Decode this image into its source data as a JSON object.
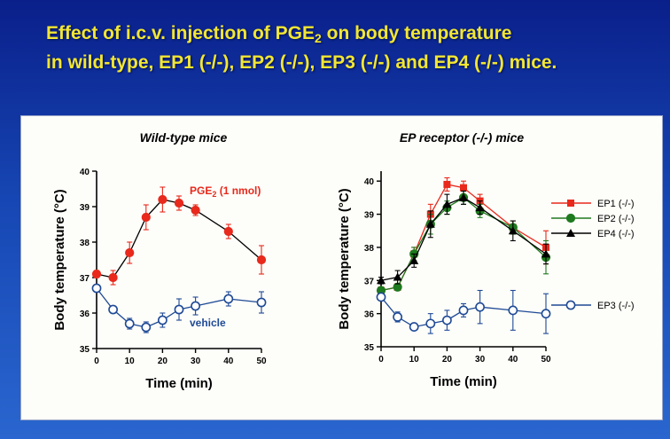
{
  "title": {
    "line1_pre": "Effect of i.c.v. injection of PGE",
    "line1_sub": "2",
    "line1_post": " on body temperature",
    "line2": "in wild-type, EP1 (-/-), EP2 (-/-), EP3 (-/-) and EP4 (-/-) mice."
  },
  "colors": {
    "background": "#1a49b5",
    "title_text": "#f2e633",
    "panel": "#fdfdf9",
    "pge2": "#e8291c",
    "vehicle": "#1f4a96",
    "ep1": "#e8291c",
    "ep2": "#1e7a1e",
    "ep4": "#000000",
    "ep3": "#1f4a96"
  },
  "chart_data": [
    {
      "type": "line",
      "title": "Wild-type mice",
      "xlabel": "Time (min)",
      "ylabel": "Body temperature (°C)",
      "xlim": [
        0,
        50
      ],
      "ylim": [
        35,
        40
      ],
      "xticks": [
        "0",
        "10",
        "20",
        "30",
        "40",
        "50"
      ],
      "yticks": [
        "35",
        "36",
        "37",
        "38",
        "39",
        "40"
      ],
      "series": [
        {
          "name": "PGE2 (1 nmol)",
          "label_main": "PGE",
          "label_sub": "2",
          "label_post": " (1 nmol)",
          "color": "pge2",
          "marker": "filled-circle",
          "x": [
            0,
            5,
            10,
            15,
            20,
            25,
            30,
            40,
            50
          ],
          "y": [
            37.1,
            37.0,
            37.7,
            38.7,
            39.2,
            39.1,
            38.9,
            38.3,
            37.5
          ],
          "err": [
            0.1,
            0.2,
            0.3,
            0.35,
            0.35,
            0.2,
            0.15,
            0.2,
            0.4
          ]
        },
        {
          "name": "vehicle",
          "color": "vehicle",
          "marker": "open-circle",
          "x": [
            0,
            5,
            10,
            15,
            20,
            25,
            30,
            40,
            50
          ],
          "y": [
            36.7,
            36.1,
            35.7,
            35.6,
            35.8,
            36.1,
            36.2,
            36.4,
            36.3
          ],
          "err": [
            0.1,
            0.1,
            0.15,
            0.15,
            0.2,
            0.3,
            0.25,
            0.2,
            0.3
          ]
        }
      ]
    },
    {
      "type": "line",
      "title": "EP receptor (-/-) mice",
      "xlabel": "Time (min)",
      "ylabel": "Body temperature (°C)",
      "xlim": [
        0,
        50
      ],
      "ylim": [
        35,
        40.3
      ],
      "xticks": [
        "0",
        "10",
        "20",
        "30",
        "40",
        "50"
      ],
      "yticks": [
        "35",
        "36",
        "37",
        "38",
        "39",
        "40"
      ],
      "legend_position": "right",
      "series": [
        {
          "name": "EP1 (-/-)",
          "color": "ep1",
          "marker": "filled-square",
          "x": [
            0,
            5,
            10,
            15,
            20,
            25,
            30,
            40,
            50
          ],
          "y": [
            36.7,
            36.8,
            37.8,
            39.0,
            39.9,
            39.8,
            39.4,
            38.6,
            38.0
          ],
          "err": [
            0.1,
            0.1,
            0.2,
            0.3,
            0.2,
            0.2,
            0.2,
            0.2,
            0.5
          ]
        },
        {
          "name": "EP2 (-/-)",
          "color": "ep2",
          "marker": "filled-circle",
          "x": [
            0,
            5,
            10,
            15,
            20,
            25,
            30,
            40,
            50
          ],
          "y": [
            36.7,
            36.8,
            37.8,
            38.7,
            39.2,
            39.5,
            39.1,
            38.6,
            37.7
          ],
          "err": [
            0.1,
            0.1,
            0.2,
            0.3,
            0.2,
            0.2,
            0.2,
            0.2,
            0.5
          ]
        },
        {
          "name": "EP4 (-/-)",
          "color": "ep4",
          "marker": "filled-triangle",
          "x": [
            0,
            5,
            10,
            15,
            20,
            25,
            30,
            40,
            50
          ],
          "y": [
            37.0,
            37.1,
            37.6,
            38.7,
            39.3,
            39.5,
            39.2,
            38.5,
            37.8
          ],
          "err": [
            0.1,
            0.2,
            0.2,
            0.4,
            0.3,
            0.2,
            0.2,
            0.3,
            0.3
          ]
        },
        {
          "name": "EP3 (-/-)",
          "color": "ep3",
          "marker": "open-circle",
          "x": [
            0,
            5,
            10,
            15,
            20,
            25,
            30,
            40,
            50
          ],
          "y": [
            36.5,
            35.9,
            35.6,
            35.7,
            35.8,
            36.1,
            36.2,
            36.1,
            36.0
          ],
          "err": [
            0.1,
            0.15,
            0.1,
            0.3,
            0.3,
            0.2,
            0.5,
            0.6,
            0.6
          ]
        }
      ]
    }
  ]
}
